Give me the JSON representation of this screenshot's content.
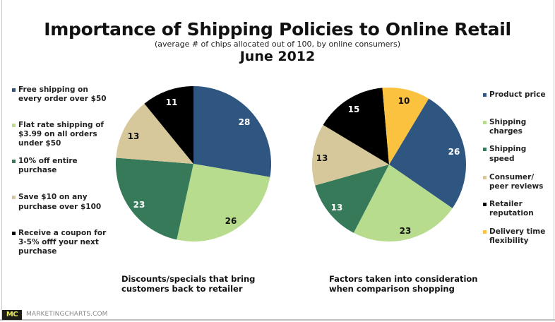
{
  "header": {
    "title": "Importance of Shipping Policies to Online Retail",
    "subtitle": "(average # of chips allocated out of 100, by online consumers)",
    "date": "June 2012"
  },
  "colors": {
    "blue": "#2f5680",
    "light_green": "#b8dc8e",
    "dark_green": "#367a5a",
    "tan": "#d7c89c",
    "black": "#000000",
    "yellow": "#fac23e"
  },
  "chart_data": [
    {
      "type": "pie",
      "title": "Discounts/specials that bring customers back to retailer",
      "categories": [
        "Free shipping on every order over $50",
        "Flat rate shipping of $3.99 on all orders under $50",
        "10% off entire purchase",
        "Save $10 on any purchase over $100",
        "Receive a coupon for 3-5% offf your next purchase"
      ],
      "values": [
        28,
        26,
        23,
        13,
        11
      ],
      "colors": [
        "#2f5680",
        "#b8dc8e",
        "#367a5a",
        "#d7c89c",
        "#000000"
      ],
      "start_angle_deg": 0,
      "legend_position": "left"
    },
    {
      "type": "pie",
      "title": "Factors taken into consideration when comparison shopping",
      "categories": [
        "Product price",
        "Shipping charges",
        "Shipping speed",
        "Consumer/ peer reviews",
        "Retailer reputation",
        "Delivery time flexibility"
      ],
      "values": [
        26,
        23,
        13,
        13,
        15,
        10
      ],
      "colors": [
        "#2f5680",
        "#b8dc8e",
        "#367a5a",
        "#d7c89c",
        "#000000",
        "#fac23e"
      ],
      "start_angle_deg": 31,
      "legend_position": "right"
    }
  ],
  "left_chart": {
    "legend": [
      {
        "lines": [
          "Free shipping on",
          "every order over $50"
        ]
      },
      {
        "lines": [
          "Flat rate shipping of",
          "$3.99 on all orders",
          "under $50"
        ]
      },
      {
        "lines": [
          "10% off entire",
          "purchase"
        ]
      },
      {
        "lines": [
          "Save $10 on any",
          "purchase over $100"
        ]
      },
      {
        "lines": [
          "Receive a coupon for",
          "3-5% offf your next",
          "purchase"
        ]
      }
    ],
    "labels": [
      "28",
      "26",
      "23",
      "13",
      "11"
    ],
    "caption": [
      "Discounts/specials that bring",
      "customers back to retailer"
    ]
  },
  "right_chart": {
    "legend": [
      {
        "lines": [
          "Product price"
        ]
      },
      {
        "lines": [
          "Shipping",
          "charges"
        ]
      },
      {
        "lines": [
          "Shipping",
          "speed"
        ]
      },
      {
        "lines": [
          "Consumer/",
          "peer reviews"
        ]
      },
      {
        "lines": [
          "Retailer",
          "reputation"
        ]
      },
      {
        "lines": [
          "Delivery time",
          "flexibility"
        ]
      }
    ],
    "labels": [
      "26",
      "23",
      "13",
      "13",
      "15",
      "10"
    ],
    "caption": [
      "Factors taken into consideration",
      "when comparison shopping"
    ]
  },
  "footer": {
    "badge": "MC",
    "source": "MARKETINGCHARTS.COM"
  }
}
